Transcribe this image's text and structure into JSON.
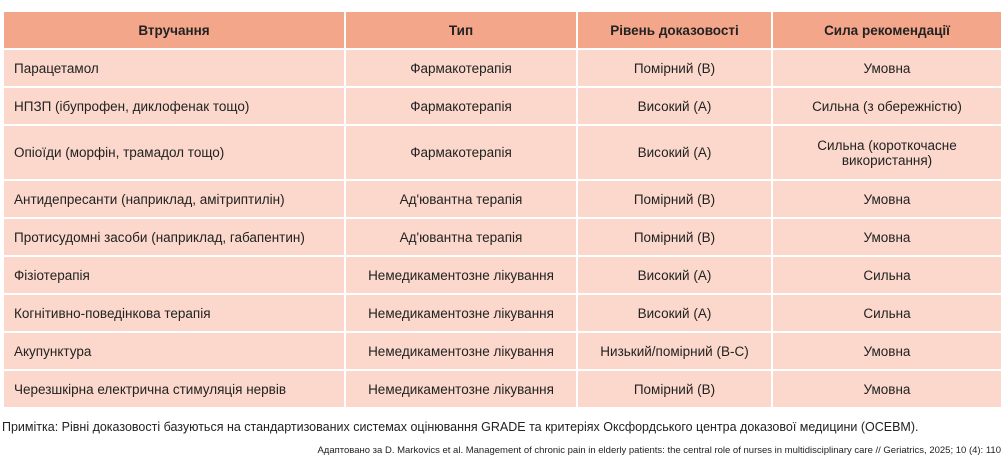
{
  "table": {
    "headers": [
      "Втручання",
      "Тип",
      "Рівень доказовості",
      "Сила рекомендації"
    ],
    "rows": [
      [
        "Парацетамол",
        "Фармакотерапія",
        "Помірний (B)",
        "Умовна"
      ],
      [
        "НПЗП (ібупрофен, диклофенак тощо)",
        "Фармакотерапія",
        "Високий (A)",
        "Сильна (з обережністю)"
      ],
      [
        "Опіоїди (морфін, трамадол тощо)",
        "Фармакотерапія",
        "Високий (A)",
        "Сильна (короткочасне використання)"
      ],
      [
        "Антидепресанти (наприклад, амітриптилін)",
        "Ад'ювантна терапія",
        "Помірний (B)",
        "Умовна"
      ],
      [
        "Протисудомні засоби (наприклад, габапентин)",
        "Ад'ювантна терапія",
        "Помірний (B)",
        "Умовна"
      ],
      [
        "Фізіотерапія",
        "Немедикаментозне лікування",
        "Високий (A)",
        "Сильна"
      ],
      [
        "Когнітивно-поведінкова терапія",
        "Немедикаментозне лікування",
        "Високий (A)",
        "Сильна"
      ],
      [
        "Акупунктура",
        "Немедикаментозне лікування",
        "Низький/помірний (B-C)",
        "Умовна"
      ],
      [
        "Черезшкірна електрична стимуляція нервів",
        "Немедикаментозне лікування",
        "Помірний (B)",
        "Умовна"
      ]
    ]
  },
  "note": "Примітка: Рівні доказовості базуються на стандартизованих системах оцінювання GRADE та критеріях Оксфордського центра доказової медицини (OCEBM).",
  "source": "Адаптовано за D. Markovics et al. Management of chronic pain in elderly patients: the central role of nurses in multidisciplinary care // Geriatrics, 2025; 10 (4): 110",
  "colors": {
    "header": "#f4a68b",
    "row": "#fbd8cb"
  }
}
